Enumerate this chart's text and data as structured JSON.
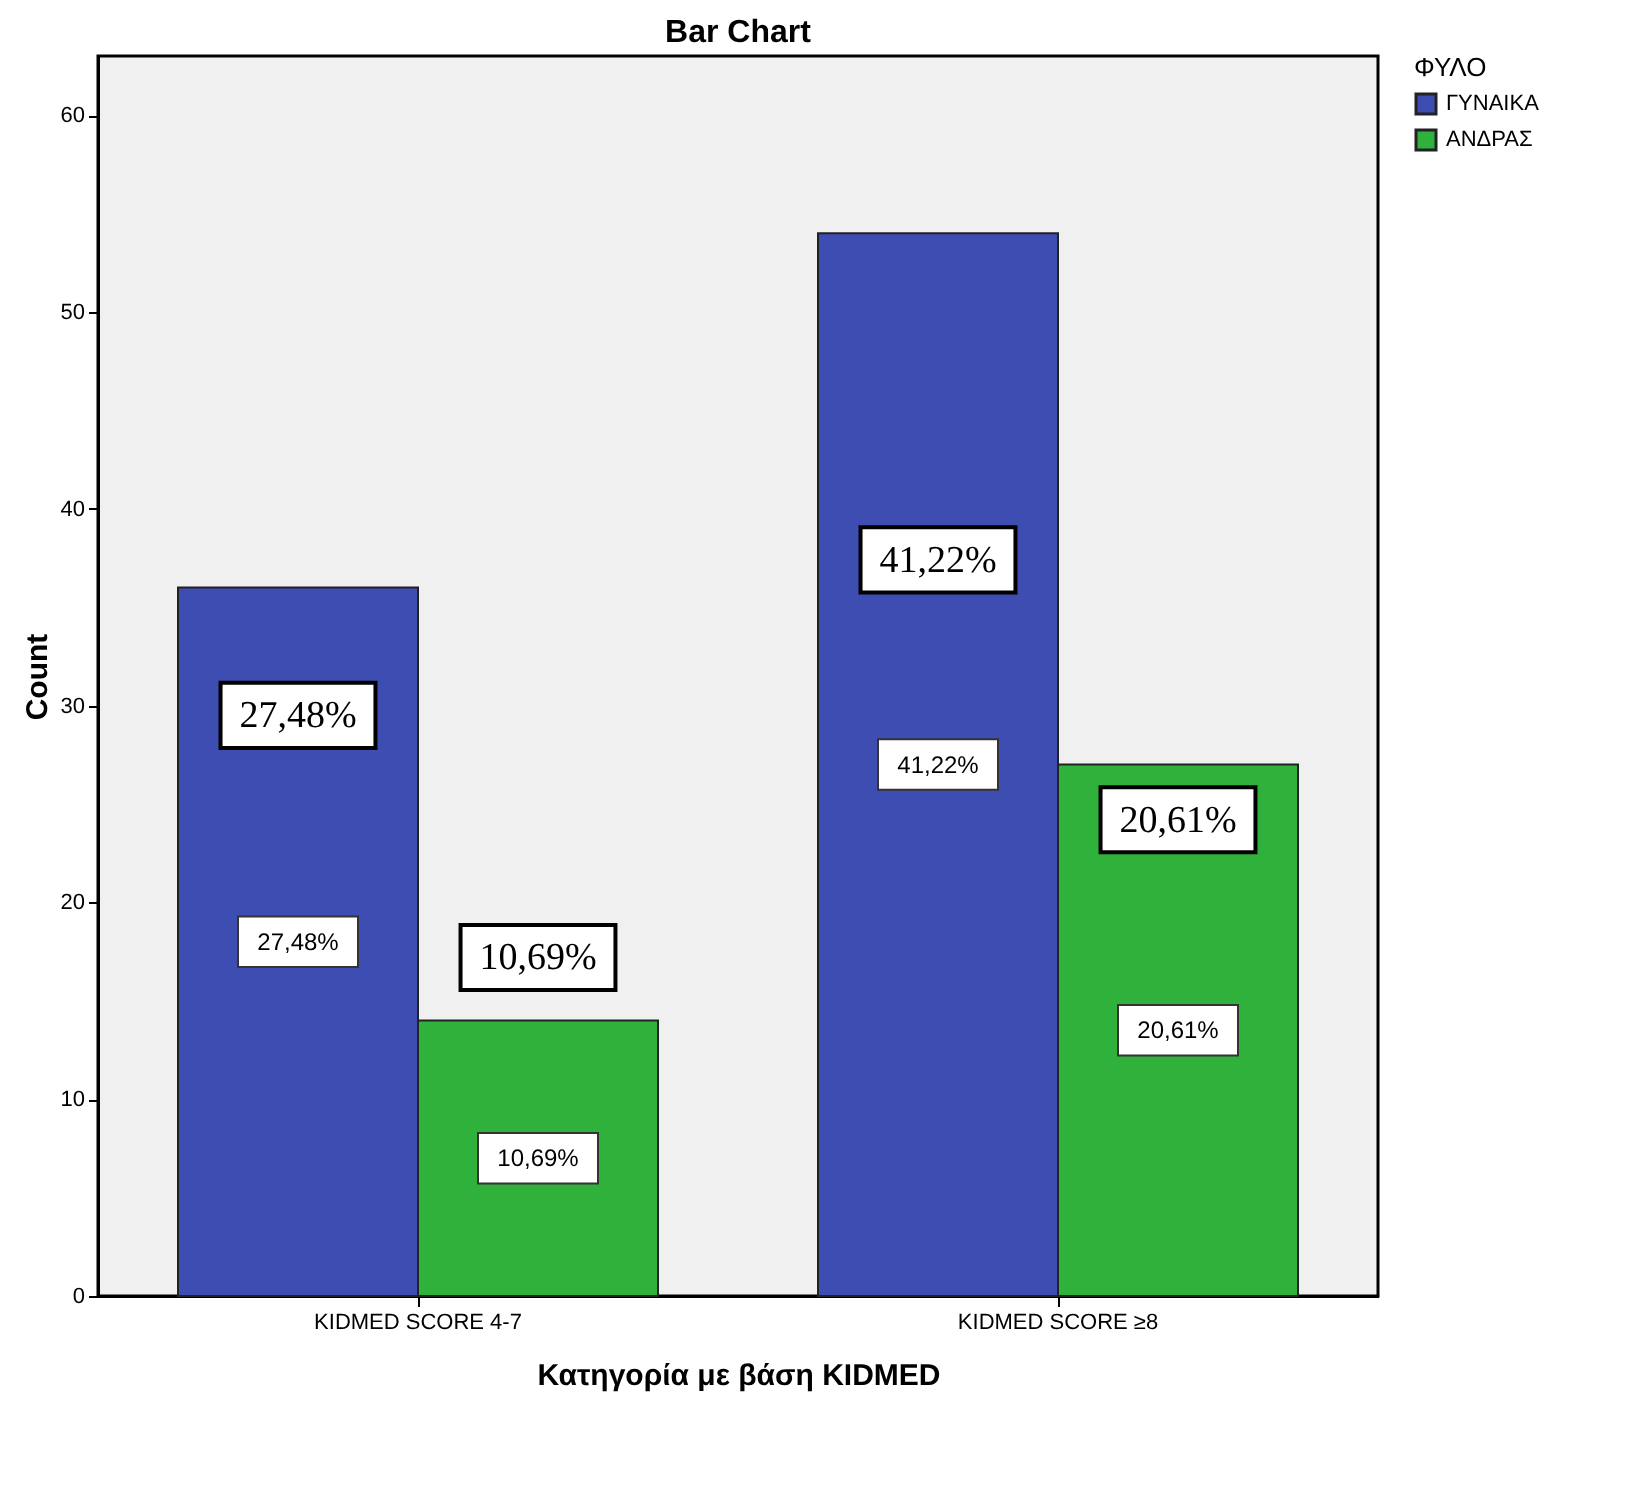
{
  "chart_data": {
    "type": "bar",
    "title": "Bar Chart",
    "xlabel": "Κατηγορία με βάση KIDMED",
    "ylabel": "Count",
    "legend_title": "ΦΥΛΟ",
    "categories": [
      "KIDMED SCORE 4-7",
      "KIDMED SCORE ≥8"
    ],
    "series": [
      {
        "name": "ΓΥΝΑΙΚΑ",
        "color": "#3d4db2",
        "values": [
          36,
          54
        ]
      },
      {
        "name": "ΑΝΔΡΑΣ",
        "color": "#2fb13c",
        "values": [
          14,
          27
        ]
      }
    ],
    "annotations": [
      {
        "text": "27,48%",
        "x": "KIDMED SCORE 4-7",
        "y": 29.5
      },
      {
        "text": "10,69%",
        "x": "KIDMED SCORE 4-7",
        "y": 17.2
      },
      {
        "text": "41,22%",
        "x": "KIDMED SCORE ≥8",
        "y": 37.4
      },
      {
        "text": "20,61%",
        "x": "KIDMED SCORE ≥8",
        "y": 24.2
      },
      "27,48%",
      "10,69%",
      "41,22%",
      "20,61%"
    ],
    "ylim": [
      0,
      63
    ],
    "yticks": [
      0,
      10,
      20,
      30,
      40,
      50,
      60
    ],
    "grid": false,
    "legend": "top right"
  }
}
